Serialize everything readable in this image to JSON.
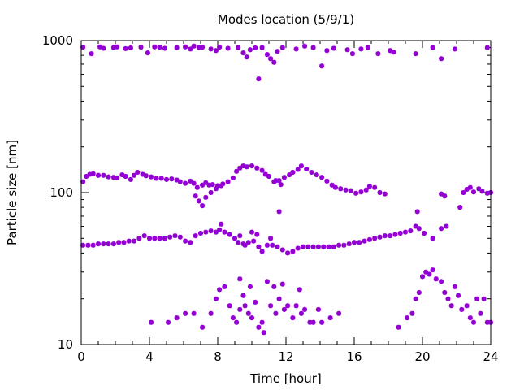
{
  "chart_data": {
    "type": "scatter",
    "title": "Modes location (5/9/1)",
    "xlabel": "Time [hour]",
    "ylabel": "Particle size [nm]",
    "x_range": [
      0,
      24
    ],
    "y_range": [
      10,
      1000
    ],
    "y_scale": "log",
    "x_ticks": [
      0,
      4,
      8,
      12,
      16,
      20,
      24
    ],
    "x_tick_labels": [
      "0",
      "4",
      "8",
      "12",
      "16",
      "20",
      "24"
    ],
    "y_ticks": [
      10,
      100,
      1000
    ],
    "y_tick_labels": [
      "10",
      "100",
      "1000"
    ],
    "grid": false,
    "legend": "none",
    "marker_color": "#9400d3",
    "series": [
      {
        "points": [
          [
            0.1,
            905
          ],
          [
            0.6,
            820
          ],
          [
            1.1,
            910
          ],
          [
            1.3,
            890
          ],
          [
            1.9,
            900
          ],
          [
            2.1,
            910
          ],
          [
            2.6,
            885
          ],
          [
            2.9,
            895
          ],
          [
            3.5,
            905
          ],
          [
            3.9,
            830
          ],
          [
            4.3,
            910
          ],
          [
            4.6,
            905
          ],
          [
            4.9,
            890
          ],
          [
            5.6,
            900
          ],
          [
            6.1,
            910
          ],
          [
            6.4,
            880
          ],
          [
            6.6,
            920
          ],
          [
            6.9,
            900
          ],
          [
            7.1,
            905
          ],
          [
            7.6,
            880
          ],
          [
            7.9,
            860
          ],
          [
            8.1,
            905
          ],
          [
            8.6,
            890
          ],
          [
            9.2,
            900
          ],
          [
            9.5,
            830
          ],
          [
            9.7,
            780
          ],
          [
            9.9,
            870
          ],
          [
            10.2,
            895
          ],
          [
            10.4,
            560
          ],
          [
            10.6,
            900
          ],
          [
            10.9,
            810
          ],
          [
            11.1,
            760
          ],
          [
            11.3,
            720
          ],
          [
            11.5,
            850
          ],
          [
            11.8,
            900
          ],
          [
            12.6,
            880
          ],
          [
            13.1,
            920
          ],
          [
            13.6,
            900
          ],
          [
            14.1,
            680
          ],
          [
            14.4,
            860
          ],
          [
            14.8,
            890
          ],
          [
            15.6,
            870
          ],
          [
            15.9,
            820
          ],
          [
            16.4,
            880
          ],
          [
            16.8,
            900
          ],
          [
            17.4,
            820
          ],
          [
            18.1,
            860
          ],
          [
            18.3,
            840
          ],
          [
            19.6,
            820
          ],
          [
            20.6,
            900
          ],
          [
            21.1,
            760
          ],
          [
            21.9,
            880
          ],
          [
            23.8,
            900
          ]
        ]
      },
      {
        "points": [
          [
            0.1,
            118
          ],
          [
            0.3,
            128
          ],
          [
            0.5,
            132
          ],
          [
            0.7,
            133
          ],
          [
            1.0,
            130
          ],
          [
            1.3,
            130
          ],
          [
            1.6,
            127
          ],
          [
            1.9,
            126
          ],
          [
            2.1,
            125
          ],
          [
            2.4,
            131
          ],
          [
            2.6,
            128
          ],
          [
            2.9,
            122
          ],
          [
            3.1,
            130
          ],
          [
            3.3,
            136
          ],
          [
            3.6,
            132
          ],
          [
            3.8,
            129
          ],
          [
            4.1,
            127
          ],
          [
            4.4,
            124
          ],
          [
            4.7,
            124
          ],
          [
            5.0,
            122
          ],
          [
            5.3,
            123
          ],
          [
            5.6,
            121
          ],
          [
            5.8,
            118
          ],
          [
            6.1,
            115
          ],
          [
            6.4,
            119
          ],
          [
            6.6,
            115
          ],
          [
            6.8,
            108
          ],
          [
            7.1,
            112
          ],
          [
            7.3,
            116
          ],
          [
            7.5,
            112
          ],
          [
            7.7,
            113
          ],
          [
            8.0,
            111
          ],
          [
            8.3,
            114
          ],
          [
            8.6,
            118
          ],
          [
            8.9,
            125
          ],
          [
            9.1,
            138
          ],
          [
            9.3,
            145
          ],
          [
            9.5,
            150
          ],
          [
            9.7,
            148
          ],
          [
            10.0,
            150
          ],
          [
            10.3,
            145
          ],
          [
            10.6,
            140
          ],
          [
            10.8,
            132
          ],
          [
            11.0,
            128
          ],
          [
            11.3,
            118
          ],
          [
            11.6,
            120
          ],
          [
            11.9,
            126
          ],
          [
            12.2,
            131
          ],
          [
            12.4,
            136
          ],
          [
            12.7,
            142
          ],
          [
            12.9,
            150
          ],
          [
            13.2,
            143
          ],
          [
            13.5,
            136
          ],
          [
            13.8,
            131
          ],
          [
            14.1,
            126
          ],
          [
            14.4,
            119
          ],
          [
            14.7,
            112
          ],
          [
            14.9,
            108
          ],
          [
            15.2,
            106
          ],
          [
            15.5,
            104
          ],
          [
            15.8,
            103
          ],
          [
            16.1,
            99
          ],
          [
            16.4,
            101
          ],
          [
            16.7,
            104
          ],
          [
            16.9,
            110
          ],
          [
            17.2,
            108
          ],
          [
            17.5,
            100
          ],
          [
            17.8,
            98
          ],
          [
            6.7,
            95
          ],
          [
            6.9,
            88
          ],
          [
            7.1,
            82
          ],
          [
            7.3,
            93
          ],
          [
            7.6,
            100
          ],
          [
            7.9,
            106
          ],
          [
            8.2,
            111
          ],
          [
            11.4,
            120
          ],
          [
            11.7,
            113
          ],
          [
            21.1,
            98
          ],
          [
            21.3,
            95
          ],
          [
            22.2,
            80
          ],
          [
            22.4,
            100
          ],
          [
            22.6,
            105
          ],
          [
            22.8,
            108
          ],
          [
            23.0,
            101
          ],
          [
            23.3,
            106
          ],
          [
            23.5,
            102
          ],
          [
            23.8,
            99
          ],
          [
            24.0,
            100
          ]
        ]
      },
      {
        "points": [
          [
            0.1,
            45
          ],
          [
            0.4,
            45
          ],
          [
            0.7,
            45
          ],
          [
            1.0,
            46
          ],
          [
            1.3,
            46
          ],
          [
            1.6,
            46
          ],
          [
            1.9,
            46
          ],
          [
            2.2,
            47
          ],
          [
            2.5,
            47
          ],
          [
            2.8,
            48
          ],
          [
            3.1,
            48
          ],
          [
            3.4,
            50
          ],
          [
            3.7,
            52
          ],
          [
            4.0,
            50
          ],
          [
            4.3,
            50
          ],
          [
            4.6,
            50
          ],
          [
            4.9,
            50
          ],
          [
            5.2,
            51
          ],
          [
            5.5,
            52
          ],
          [
            5.8,
            51
          ],
          [
            6.1,
            48
          ],
          [
            6.4,
            47
          ],
          [
            6.7,
            52
          ],
          [
            7.0,
            54
          ],
          [
            7.3,
            55
          ],
          [
            7.6,
            56
          ],
          [
            7.9,
            55
          ],
          [
            8.1,
            57
          ],
          [
            8.4,
            55
          ],
          [
            8.7,
            53
          ],
          [
            9.0,
            50
          ],
          [
            9.2,
            47
          ],
          [
            9.5,
            46
          ],
          [
            9.8,
            47
          ],
          [
            10.1,
            48
          ],
          [
            10.4,
            44
          ],
          [
            10.6,
            41
          ],
          [
            10.9,
            45
          ],
          [
            11.2,
            45
          ],
          [
            11.5,
            44
          ],
          [
            11.8,
            42
          ],
          [
            12.1,
            40
          ],
          [
            12.4,
            41
          ],
          [
            12.7,
            43
          ],
          [
            13.0,
            44
          ],
          [
            13.3,
            44
          ],
          [
            13.6,
            44
          ],
          [
            13.9,
            44
          ],
          [
            14.2,
            44
          ],
          [
            14.5,
            44
          ],
          [
            14.8,
            44
          ],
          [
            15.1,
            45
          ],
          [
            15.4,
            45
          ],
          [
            15.7,
            46
          ],
          [
            16.0,
            47
          ],
          [
            16.3,
            47
          ],
          [
            16.6,
            48
          ],
          [
            16.9,
            49
          ],
          [
            17.2,
            50
          ],
          [
            17.5,
            51
          ],
          [
            17.8,
            52
          ],
          [
            18.1,
            52
          ],
          [
            18.4,
            53
          ],
          [
            18.7,
            54
          ],
          [
            19.0,
            55
          ],
          [
            19.3,
            56
          ],
          [
            19.6,
            60
          ],
          [
            19.8,
            58
          ],
          [
            20.1,
            54
          ],
          [
            20.6,
            50
          ],
          [
            21.1,
            58
          ],
          [
            21.4,
            60
          ],
          [
            8.2,
            62
          ],
          [
            9.3,
            52
          ],
          [
            9.6,
            45
          ],
          [
            10.0,
            55
          ],
          [
            10.3,
            53
          ],
          [
            11.1,
            50
          ],
          [
            11.6,
            75
          ],
          [
            19.7,
            75
          ]
        ]
      },
      {
        "points": [
          [
            4.1,
            14
          ],
          [
            5.1,
            14
          ],
          [
            5.6,
            15
          ],
          [
            6.1,
            16
          ],
          [
            6.6,
            16
          ],
          [
            7.1,
            13
          ],
          [
            7.6,
            16
          ],
          [
            7.9,
            20
          ],
          [
            8.1,
            23
          ],
          [
            8.4,
            24
          ],
          [
            8.7,
            18
          ],
          [
            8.9,
            15
          ],
          [
            9.1,
            14
          ],
          [
            9.3,
            17
          ],
          [
            9.5,
            21
          ],
          [
            9.6,
            18
          ],
          [
            9.8,
            16
          ],
          [
            10.0,
            15
          ],
          [
            10.2,
            19
          ],
          [
            10.4,
            13
          ],
          [
            10.6,
            14
          ],
          [
            10.9,
            26
          ],
          [
            11.1,
            18
          ],
          [
            11.4,
            16
          ],
          [
            11.6,
            20
          ],
          [
            11.9,
            17
          ],
          [
            12.1,
            18
          ],
          [
            12.4,
            15
          ],
          [
            12.6,
            18
          ],
          [
            12.9,
            16
          ],
          [
            13.1,
            17
          ],
          [
            13.4,
            14
          ],
          [
            13.6,
            14
          ],
          [
            13.9,
            17
          ],
          [
            14.1,
            14
          ],
          [
            14.6,
            15
          ],
          [
            15.1,
            16
          ],
          [
            9.3,
            27
          ],
          [
            9.9,
            24
          ],
          [
            10.7,
            12
          ],
          [
            11.3,
            24
          ],
          [
            11.8,
            25
          ],
          [
            12.8,
            23
          ],
          [
            18.6,
            13
          ],
          [
            19.1,
            15
          ],
          [
            19.4,
            16
          ],
          [
            19.6,
            20
          ],
          [
            19.8,
            22
          ],
          [
            20.0,
            28
          ],
          [
            20.2,
            30
          ],
          [
            20.4,
            29
          ],
          [
            20.6,
            31
          ],
          [
            20.8,
            27
          ],
          [
            21.1,
            26
          ],
          [
            21.3,
            22
          ],
          [
            21.5,
            20
          ],
          [
            21.7,
            18
          ],
          [
            21.9,
            24
          ],
          [
            22.1,
            21
          ],
          [
            22.3,
            17
          ],
          [
            22.6,
            18
          ],
          [
            22.8,
            15
          ],
          [
            23.0,
            14
          ],
          [
            23.2,
            20
          ],
          [
            23.4,
            16
          ],
          [
            23.6,
            20
          ],
          [
            23.8,
            14
          ],
          [
            24.0,
            14
          ]
        ]
      }
    ]
  }
}
